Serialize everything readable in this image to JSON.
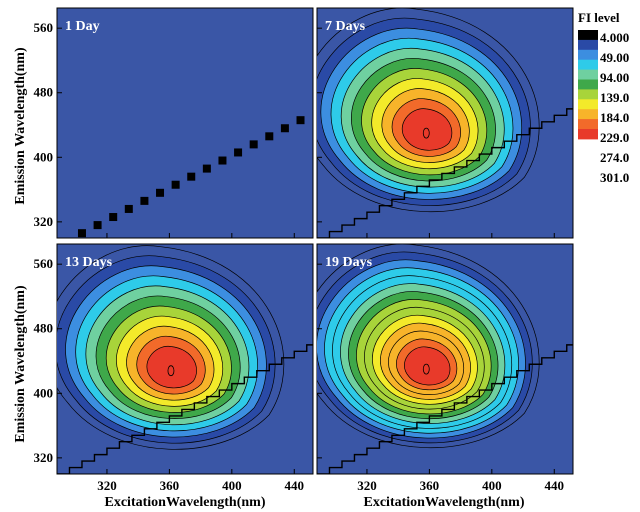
{
  "chart_data": {
    "type": "contour",
    "legend": {
      "title": "FI level",
      "levels": [
        "4.000",
        "49.00",
        "94.00",
        "139.0",
        "184.0",
        "229.0",
        "274.0",
        "301.0"
      ],
      "colors": [
        "#000000",
        "#2a4aa6",
        "#3c8ee0",
        "#2ecbe9",
        "#6fd0a0",
        "#3fa84a",
        "#a8d43a",
        "#f3ea2a",
        "#f7b42a",
        "#f26a2a",
        "#e83a2a"
      ]
    },
    "x_axis": {
      "label": "ExcitationWavelength(nm)",
      "ticks": [
        320,
        360,
        400,
        440
      ],
      "range": [
        288,
        452
      ]
    },
    "y_axis": {
      "label": "Emission Wavelength(nm)",
      "ticks": [
        320,
        400,
        480,
        560
      ],
      "range": [
        300,
        585
      ]
    },
    "background_color": "#3a56a6",
    "panels": [
      {
        "label": "1 Day",
        "peak": null,
        "peak_value": 4
      },
      {
        "label": "7 Days",
        "peak": {
          "ex": 358,
          "em": 430
        },
        "peak_value": 229
      },
      {
        "label": "13 Days",
        "peak": {
          "ex": 361,
          "em": 428
        },
        "peak_value": 229
      },
      {
        "label": "19 Days",
        "peak": {
          "ex": 358,
          "em": 430
        },
        "peak_value": 274
      }
    ]
  }
}
